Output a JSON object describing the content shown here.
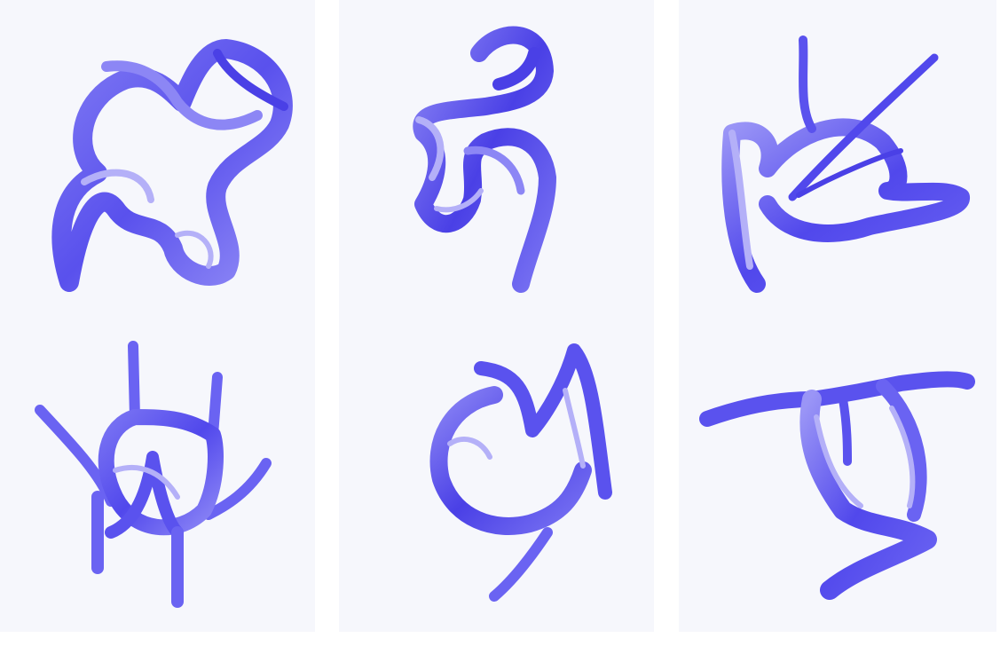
{
  "scene": {
    "background_color": "#ffffff",
    "panel_color": "#f6f7fc",
    "stroke_colors": [
      "#5a52ee",
      "#6a63f2",
      "#8c86f5",
      "#b4b0f8",
      "#4a40e6"
    ],
    "panels": [
      {
        "id": "panel-1",
        "sculptures": [
          "top",
          "bottom"
        ]
      },
      {
        "id": "panel-2",
        "sculptures": [
          "top",
          "bottom"
        ]
      },
      {
        "id": "panel-3",
        "sculptures": [
          "top",
          "bottom"
        ]
      }
    ]
  }
}
